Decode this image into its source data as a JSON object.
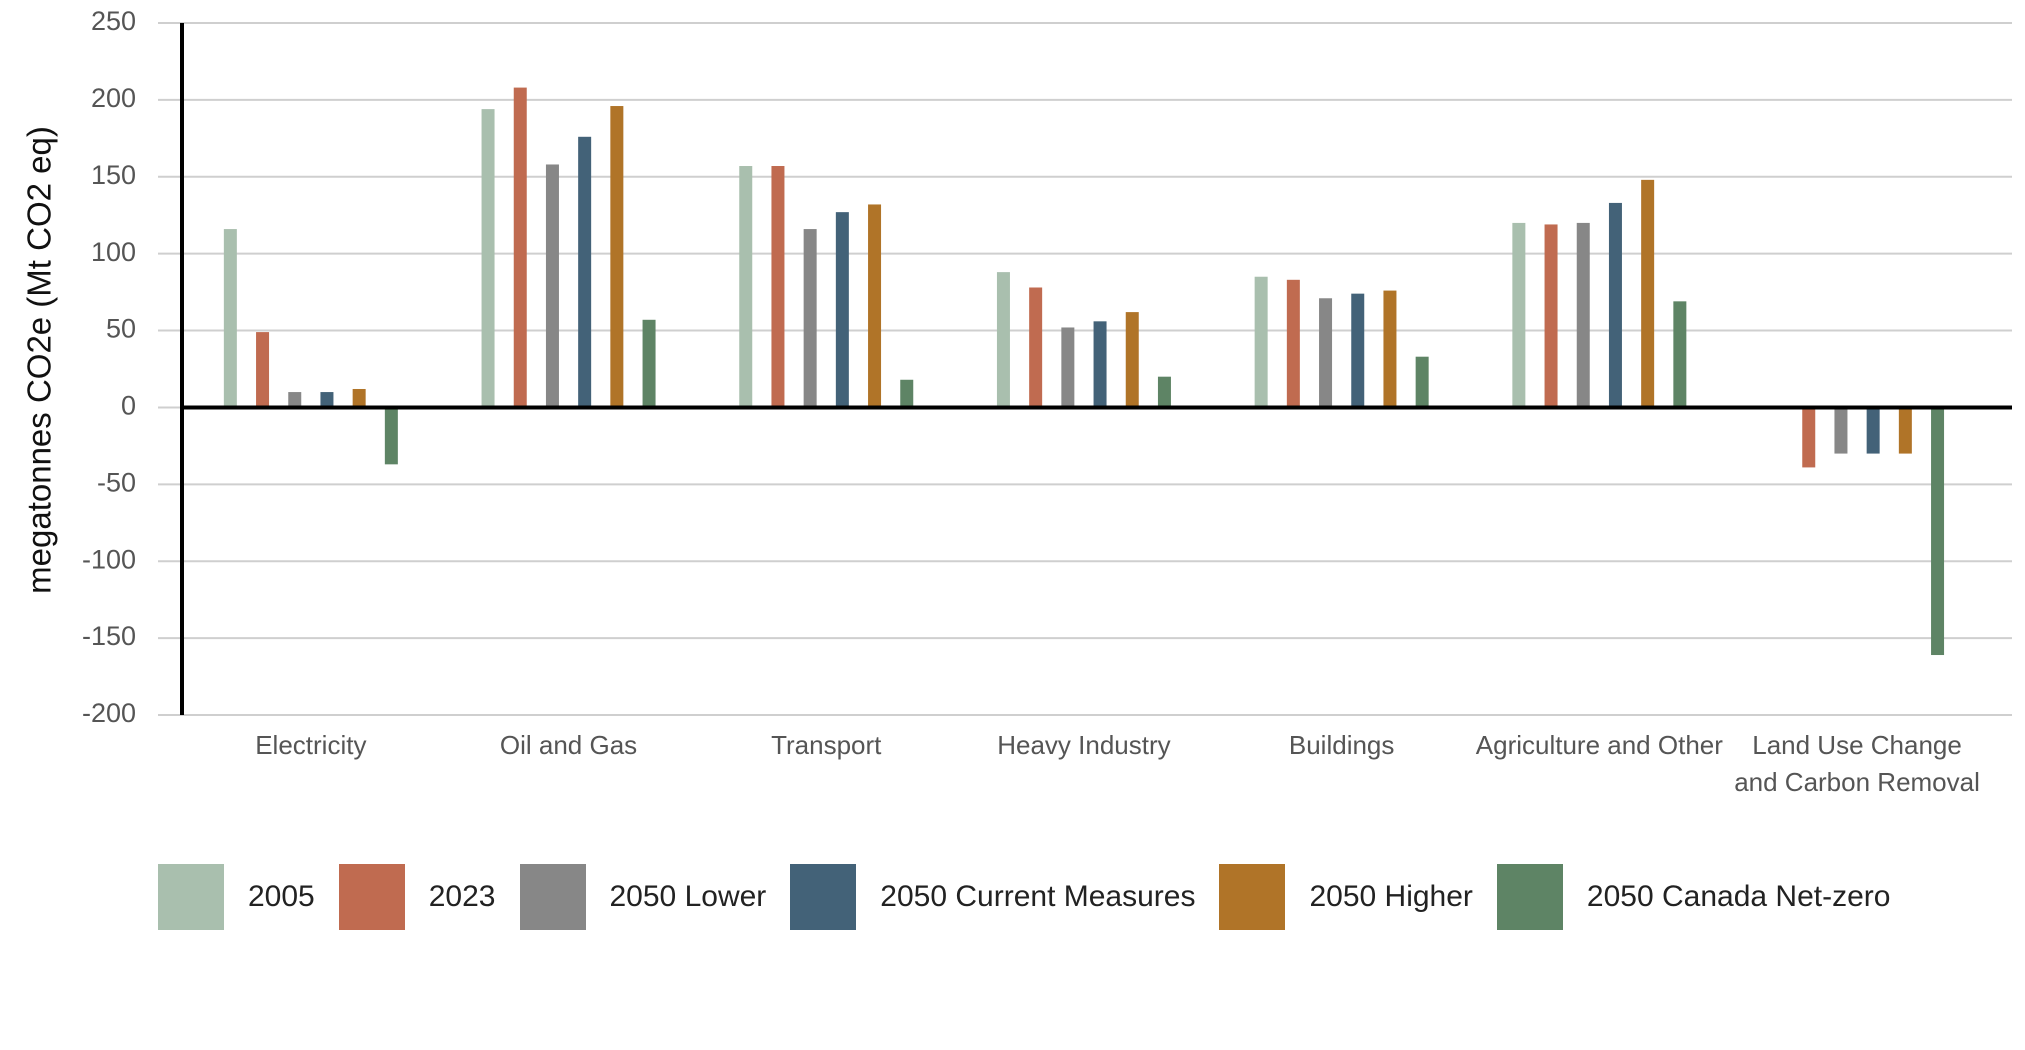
{
  "chart_data": {
    "type": "bar",
    "ylabel": "megatonnes CO2e (Mt CO2 eq)",
    "categories": [
      "Electricity",
      "Oil and Gas",
      "Transport",
      "Heavy Industry",
      "Buildings",
      "Agriculture and Other",
      "Land Use Change and Carbon Removal"
    ],
    "series": [
      {
        "name": "2005",
        "color": "#a9bfae",
        "values": [
          116,
          194,
          157,
          88,
          85,
          120,
          null
        ]
      },
      {
        "name": "2023",
        "color": "#c06b50",
        "values": [
          49,
          208,
          157,
          78,
          83,
          119,
          -39
        ]
      },
      {
        "name": "2050 Lower",
        "color": "#878787",
        "values": [
          10,
          158,
          116,
          52,
          71,
          120,
          -30
        ]
      },
      {
        "name": "2050 Current Measures",
        "color": "#436278",
        "values": [
          10,
          176,
          127,
          56,
          74,
          133,
          -30
        ]
      },
      {
        "name": "2050 Higher",
        "color": "#b07428",
        "values": [
          12,
          196,
          132,
          62,
          76,
          148,
          -30
        ]
      },
      {
        "name": "2050 Canada Net-zero",
        "color": "#5e8465",
        "values": [
          -37,
          57,
          18,
          20,
          33,
          69,
          -161
        ]
      }
    ],
    "ylim": [
      -200,
      250
    ],
    "yticks": [
      -200,
      -150,
      -100,
      -50,
      0,
      50,
      100,
      150,
      200,
      250
    ],
    "grid": true,
    "legend": "bottom"
  }
}
